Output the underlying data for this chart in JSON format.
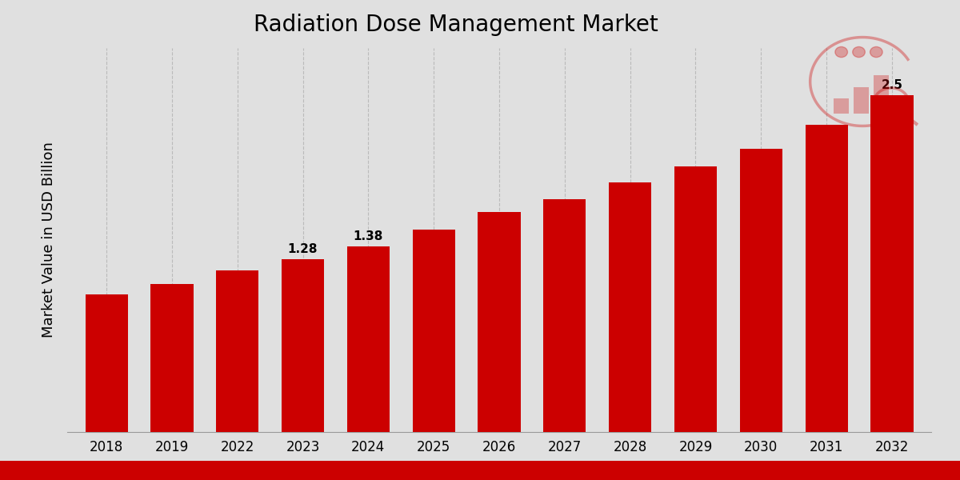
{
  "title": "Radiation Dose Management Market",
  "ylabel": "Market Value in USD Billion",
  "categories": [
    "2018",
    "2019",
    "2022",
    "2023",
    "2024",
    "2025",
    "2026",
    "2027",
    "2028",
    "2029",
    "2030",
    "2031",
    "2032"
  ],
  "values": [
    1.02,
    1.1,
    1.2,
    1.28,
    1.38,
    1.5,
    1.63,
    1.73,
    1.85,
    1.97,
    2.1,
    2.28,
    2.5
  ],
  "bar_color": "#CC0000",
  "background_color": "#E0E0E0",
  "title_fontsize": 20,
  "ylabel_fontsize": 13,
  "tick_fontsize": 12,
  "annotated_bars": {
    "2023": "1.28",
    "2024": "1.38",
    "2032": "2.5"
  },
  "ylim": [
    0,
    2.85
  ],
  "grid_color": "#BBBBBB",
  "bottom_bar_color": "#CC0000"
}
